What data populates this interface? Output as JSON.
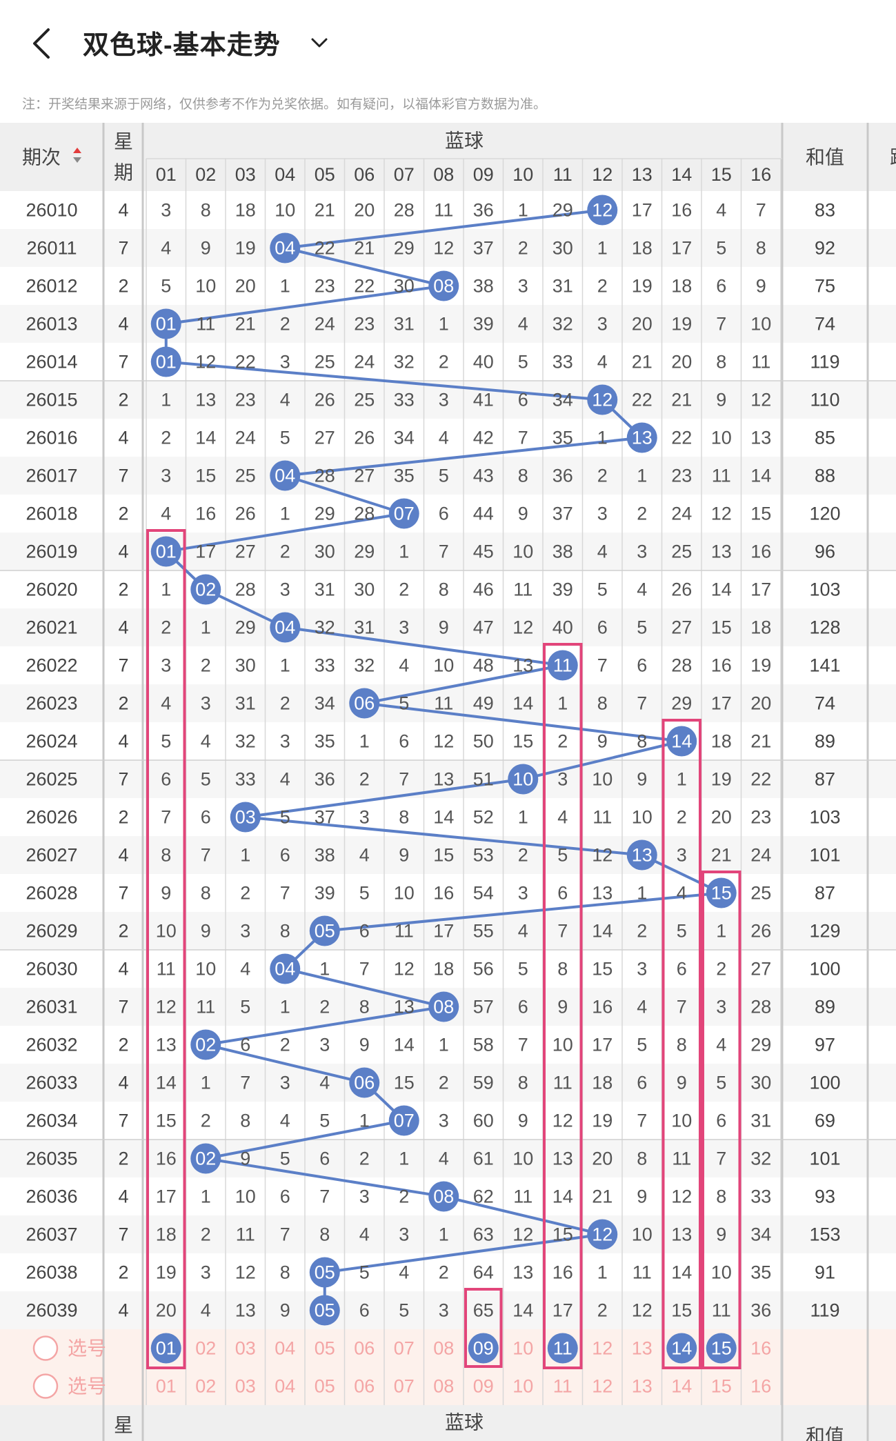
{
  "header": {
    "title": "双色球-基本走势",
    "back_icon": "chevron-left-icon",
    "dropdown_icon": "chevron-down-icon"
  },
  "notice": "注：开奖结果来源于网络，仅供参考不作为兑奖依据。如有疑问，以福体彩官方数据为准。",
  "table": {
    "col_issue": "期次",
    "col_week": [
      "星",
      "期"
    ],
    "col_blue": "蓝球",
    "col_sum": "和值",
    "col_next": "跨",
    "sort_icon": "sort-updown-icon",
    "blue_numbers": [
      "01",
      "02",
      "03",
      "04",
      "05",
      "06",
      "07",
      "08",
      "09",
      "10",
      "11",
      "12",
      "13",
      "14",
      "15",
      "16"
    ],
    "rows": [
      {
        "issue": "26010",
        "week": "4",
        "cells": [
          3,
          8,
          18,
          10,
          21,
          20,
          28,
          11,
          36,
          1,
          29,
          "12",
          17,
          16,
          4,
          7
        ],
        "sum": "83"
      },
      {
        "issue": "26011",
        "week": "7",
        "cells": [
          4,
          9,
          19,
          "04",
          22,
          21,
          29,
          12,
          37,
          2,
          30,
          1,
          18,
          17,
          5,
          8
        ],
        "sum": "92"
      },
      {
        "issue": "26012",
        "week": "2",
        "cells": [
          5,
          10,
          20,
          1,
          23,
          22,
          30,
          "08",
          38,
          3,
          31,
          2,
          19,
          18,
          6,
          9
        ],
        "sum": "75"
      },
      {
        "issue": "26013",
        "week": "4",
        "cells": [
          "01",
          11,
          21,
          2,
          24,
          23,
          31,
          1,
          39,
          4,
          32,
          3,
          20,
          19,
          7,
          10
        ],
        "sum": "74"
      },
      {
        "issue": "26014",
        "week": "7",
        "cells": [
          "01",
          12,
          22,
          3,
          25,
          24,
          32,
          2,
          40,
          5,
          33,
          4,
          21,
          20,
          8,
          11
        ],
        "sum": "119"
      },
      {
        "issue": "26015",
        "week": "2",
        "cells": [
          1,
          13,
          23,
          4,
          26,
          25,
          33,
          3,
          41,
          6,
          34,
          "12",
          22,
          21,
          9,
          12
        ],
        "sum": "110"
      },
      {
        "issue": "26016",
        "week": "4",
        "cells": [
          2,
          14,
          24,
          5,
          27,
          26,
          34,
          4,
          42,
          7,
          35,
          1,
          "13",
          22,
          10,
          13
        ],
        "sum": "85"
      },
      {
        "issue": "26017",
        "week": "7",
        "cells": [
          3,
          15,
          25,
          "04",
          28,
          27,
          35,
          5,
          43,
          8,
          36,
          2,
          1,
          23,
          11,
          14
        ],
        "sum": "88"
      },
      {
        "issue": "26018",
        "week": "2",
        "cells": [
          4,
          16,
          26,
          1,
          29,
          28,
          "07",
          6,
          44,
          9,
          37,
          3,
          2,
          24,
          12,
          15
        ],
        "sum": "120"
      },
      {
        "issue": "26019",
        "week": "4",
        "cells": [
          "01",
          17,
          27,
          2,
          30,
          29,
          1,
          7,
          45,
          10,
          38,
          4,
          3,
          25,
          13,
          16
        ],
        "sum": "96"
      },
      {
        "issue": "26020",
        "week": "2",
        "cells": [
          1,
          "02",
          28,
          3,
          31,
          30,
          2,
          8,
          46,
          11,
          39,
          5,
          4,
          26,
          14,
          17
        ],
        "sum": "103"
      },
      {
        "issue": "26021",
        "week": "4",
        "cells": [
          2,
          1,
          29,
          "04",
          32,
          31,
          3,
          9,
          47,
          12,
          40,
          6,
          5,
          27,
          15,
          18
        ],
        "sum": "128"
      },
      {
        "issue": "26022",
        "week": "7",
        "cells": [
          3,
          2,
          30,
          1,
          33,
          32,
          4,
          10,
          48,
          13,
          "11",
          7,
          6,
          28,
          16,
          19
        ],
        "sum": "141"
      },
      {
        "issue": "26023",
        "week": "2",
        "cells": [
          4,
          3,
          31,
          2,
          34,
          "06",
          5,
          11,
          49,
          14,
          1,
          8,
          7,
          29,
          17,
          20
        ],
        "sum": "74"
      },
      {
        "issue": "26024",
        "week": "4",
        "cells": [
          5,
          4,
          32,
          3,
          35,
          1,
          6,
          12,
          50,
          15,
          2,
          9,
          8,
          "14",
          18,
          21
        ],
        "sum": "89"
      },
      {
        "issue": "26025",
        "week": "7",
        "cells": [
          6,
          5,
          33,
          4,
          36,
          2,
          7,
          13,
          51,
          "10",
          3,
          10,
          9,
          1,
          19,
          22
        ],
        "sum": "87"
      },
      {
        "issue": "26026",
        "week": "2",
        "cells": [
          7,
          6,
          "03",
          5,
          37,
          3,
          8,
          14,
          52,
          1,
          4,
          11,
          10,
          2,
          20,
          23
        ],
        "sum": "103"
      },
      {
        "issue": "26027",
        "week": "4",
        "cells": [
          8,
          7,
          1,
          6,
          38,
          4,
          9,
          15,
          53,
          2,
          5,
          12,
          "13",
          3,
          21,
          24
        ],
        "sum": "101"
      },
      {
        "issue": "26028",
        "week": "7",
        "cells": [
          9,
          8,
          2,
          7,
          39,
          5,
          10,
          16,
          54,
          3,
          6,
          13,
          1,
          4,
          "15",
          25
        ],
        "sum": "87"
      },
      {
        "issue": "26029",
        "week": "2",
        "cells": [
          10,
          9,
          3,
          8,
          "05",
          6,
          11,
          17,
          55,
          4,
          7,
          14,
          2,
          5,
          1,
          26
        ],
        "sum": "129"
      },
      {
        "issue": "26030",
        "week": "4",
        "cells": [
          11,
          10,
          4,
          "04",
          1,
          7,
          12,
          18,
          56,
          5,
          8,
          15,
          3,
          6,
          2,
          27
        ],
        "sum": "100"
      },
      {
        "issue": "26031",
        "week": "7",
        "cells": [
          12,
          11,
          5,
          1,
          2,
          8,
          13,
          "08",
          57,
          6,
          9,
          16,
          4,
          7,
          3,
          28
        ],
        "sum": "89"
      },
      {
        "issue": "26032",
        "week": "2",
        "cells": [
          13,
          "02",
          6,
          2,
          3,
          9,
          14,
          1,
          58,
          7,
          10,
          17,
          5,
          8,
          4,
          29
        ],
        "sum": "97"
      },
      {
        "issue": "26033",
        "week": "4",
        "cells": [
          14,
          1,
          7,
          3,
          4,
          "06",
          15,
          2,
          59,
          8,
          11,
          18,
          6,
          9,
          5,
          30
        ],
        "sum": "100"
      },
      {
        "issue": "26034",
        "week": "7",
        "cells": [
          15,
          2,
          8,
          4,
          5,
          1,
          "07",
          3,
          60,
          9,
          12,
          19,
          7,
          10,
          6,
          31
        ],
        "sum": "69"
      },
      {
        "issue": "26035",
        "week": "2",
        "cells": [
          16,
          "02",
          9,
          5,
          6,
          2,
          1,
          4,
          61,
          10,
          13,
          20,
          8,
          11,
          7,
          32
        ],
        "sum": "101"
      },
      {
        "issue": "26036",
        "week": "4",
        "cells": [
          17,
          1,
          10,
          6,
          7,
          3,
          2,
          "08",
          62,
          11,
          14,
          21,
          9,
          12,
          8,
          33
        ],
        "sum": "93"
      },
      {
        "issue": "26037",
        "week": "7",
        "cells": [
          18,
          2,
          11,
          7,
          8,
          4,
          3,
          1,
          63,
          12,
          15,
          "12",
          10,
          13,
          9,
          34
        ],
        "sum": "153"
      },
      {
        "issue": "26038",
        "week": "2",
        "cells": [
          19,
          3,
          12,
          8,
          "05",
          5,
          4,
          2,
          64,
          13,
          16,
          1,
          11,
          14,
          10,
          35
        ],
        "sum": "91"
      },
      {
        "issue": "26039",
        "week": "4",
        "cells": [
          20,
          4,
          13,
          9,
          "05",
          6,
          5,
          3,
          65,
          14,
          17,
          2,
          12,
          15,
          11,
          36
        ],
        "sum": "119"
      }
    ],
    "select_label": "选号",
    "select_row1_chosen": [
      "01",
      "09",
      "11",
      "14",
      "15"
    ],
    "footer": {
      "col_week": "星",
      "col_blue": "蓝球",
      "col_sum": "和值"
    }
  },
  "colors": {
    "ball": "#5b7fc7",
    "line": "#5b7fc7",
    "highlight_box": "#e2457a",
    "select_text": "#f4a5a5",
    "select_bg": "#fdf1ec",
    "header_bg": "#efefef"
  }
}
